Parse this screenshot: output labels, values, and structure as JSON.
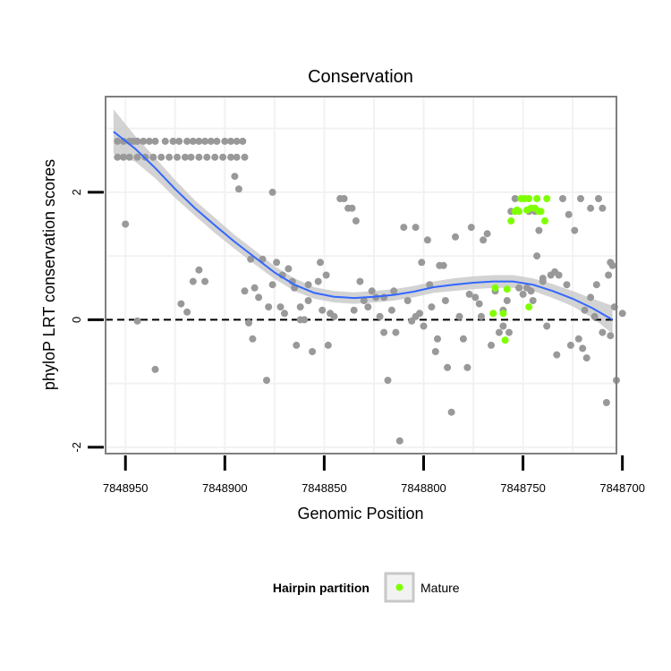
{
  "chart_data": {
    "type": "scatter",
    "title": "Conservation",
    "xlabel": "Genomic Position",
    "ylabel": "phyloP LRT conservation scores",
    "xlim": [
      7848703,
      7848960
    ],
    "ylim": [
      -2.1,
      3.5
    ],
    "x_reversed": true,
    "x_ticks": [
      7848950,
      7848900,
      7848850,
      7848800,
      7848750,
      7848700
    ],
    "x_tick_labels": [
      "7848950",
      "7848900",
      "7848850",
      "7848800",
      "7848750",
      "7848700"
    ],
    "y_ticks": [
      -2,
      0,
      2
    ],
    "y_tick_labels": [
      "-2",
      "0",
      "2"
    ],
    "reference_line": {
      "y": 0,
      "style": "dashed"
    },
    "legend": {
      "title": "Hairpin partition",
      "position": "bottom",
      "entries": [
        "Mature"
      ]
    },
    "colors": {
      "other": "#999999",
      "mature": "#7fff00",
      "smooth": "#3366ff",
      "band": "#c8c8c8",
      "panel_border": "#7f7f7f",
      "grid": "#f2f2f2"
    },
    "series": [
      {
        "name": "Other",
        "points": [
          [
            7848954,
            2.8
          ],
          [
            7848951,
            2.8
          ],
          [
            7848948,
            2.8
          ],
          [
            7848946,
            2.8
          ],
          [
            7848944,
            2.8
          ],
          [
            7848941,
            2.8
          ],
          [
            7848938,
            2.8
          ],
          [
            7848935,
            2.8
          ],
          [
            7848930,
            2.8
          ],
          [
            7848926,
            2.8
          ],
          [
            7848923,
            2.8
          ],
          [
            7848919,
            2.8
          ],
          [
            7848916,
            2.8
          ],
          [
            7848913,
            2.8
          ],
          [
            7848910,
            2.8
          ],
          [
            7848907,
            2.8
          ],
          [
            7848904,
            2.8
          ],
          [
            7848900,
            2.8
          ],
          [
            7848897,
            2.8
          ],
          [
            7848894,
            2.8
          ],
          [
            7848891,
            2.8
          ],
          [
            7848954,
            2.55
          ],
          [
            7848951,
            2.55
          ],
          [
            7848948,
            2.55
          ],
          [
            7848944,
            2.55
          ],
          [
            7848940,
            2.55
          ],
          [
            7848936,
            2.55
          ],
          [
            7848932,
            2.55
          ],
          [
            7848928,
            2.55
          ],
          [
            7848924,
            2.55
          ],
          [
            7848920,
            2.55
          ],
          [
            7848917,
            2.55
          ],
          [
            7848913,
            2.55
          ],
          [
            7848909,
            2.55
          ],
          [
            7848905,
            2.55
          ],
          [
            7848901,
            2.55
          ],
          [
            7848897,
            2.55
          ],
          [
            7848894,
            2.55
          ],
          [
            7848890,
            2.55
          ],
          [
            7848950,
            1.5
          ],
          [
            7848944,
            -0.02
          ],
          [
            7848935,
            -0.78
          ],
          [
            7848922,
            0.25
          ],
          [
            7848919,
            0.12
          ],
          [
            7848916,
            0.6
          ],
          [
            7848913,
            0.78
          ],
          [
            7848910,
            0.6
          ],
          [
            7848895,
            2.25
          ],
          [
            7848893,
            2.05
          ],
          [
            7848890,
            0.45
          ],
          [
            7848888,
            -0.05
          ],
          [
            7848886,
            -0.3
          ],
          [
            7848883,
            0.35
          ],
          [
            7848881,
            0.95
          ],
          [
            7848879,
            -0.95
          ],
          [
            7848876,
            2.0
          ],
          [
            7848876,
            0.55
          ],
          [
            7848874,
            0.9
          ],
          [
            7848872,
            0.2
          ],
          [
            7848870,
            0.1
          ],
          [
            7848868,
            0.8
          ],
          [
            7848866,
            0.6
          ],
          [
            7848864,
            -0.4
          ],
          [
            7848862,
            0.2
          ],
          [
            7848860,
            0.0
          ],
          [
            7848858,
            0.55
          ],
          [
            7848856,
            -0.5
          ],
          [
            7848853,
            0.6
          ],
          [
            7848851,
            0.15
          ],
          [
            7848849,
            0.7
          ],
          [
            7848847,
            0.1
          ],
          [
            7848845,
            0.05
          ],
          [
            7848842,
            1.9
          ],
          [
            7848840,
            1.9
          ],
          [
            7848838,
            1.75
          ],
          [
            7848836,
            1.75
          ],
          [
            7848834,
            1.55
          ],
          [
            7848832,
            0.6
          ],
          [
            7848830,
            0.3
          ],
          [
            7848828,
            0.2
          ],
          [
            7848826,
            0.45
          ],
          [
            7848824,
            0.35
          ],
          [
            7848822,
            0.05
          ],
          [
            7848820,
            -0.2
          ],
          [
            7848818,
            -0.95
          ],
          [
            7848816,
            0.15
          ],
          [
            7848814,
            -0.2
          ],
          [
            7848812,
            -1.9
          ],
          [
            7848810,
            1.45
          ],
          [
            7848808,
            0.3
          ],
          [
            7848806,
            -0.02
          ],
          [
            7848804,
            1.45
          ],
          [
            7848802,
            0.1
          ],
          [
            7848800,
            -0.1
          ],
          [
            7848798,
            1.25
          ],
          [
            7848796,
            0.2
          ],
          [
            7848794,
            -0.5
          ],
          [
            7848792,
            0.85
          ],
          [
            7848790,
            0.85
          ],
          [
            7848788,
            -0.75
          ],
          [
            7848786,
            -1.45
          ],
          [
            7848784,
            1.3
          ],
          [
            7848782,
            0.05
          ],
          [
            7848780,
            -0.3
          ],
          [
            7848778,
            -0.75
          ],
          [
            7848776,
            1.45
          ],
          [
            7848774,
            0.35
          ],
          [
            7848772,
            0.25
          ],
          [
            7848770,
            1.25
          ],
          [
            7848768,
            1.35
          ],
          [
            7848766,
            -0.4
          ],
          [
            7848764,
            0.45
          ],
          [
            7848762,
            -0.2
          ],
          [
            7848760,
            0.15
          ],
          [
            7848758,
            0.3
          ],
          [
            7848756,
            1.7
          ],
          [
            7848754,
            1.9
          ],
          [
            7848752,
            0.5
          ],
          [
            7848750,
            0.4
          ],
          [
            7848748,
            0.5
          ],
          [
            7848746,
            0.45
          ],
          [
            7848744,
            1.7
          ],
          [
            7848742,
            1.4
          ],
          [
            7848740,
            0.65
          ],
          [
            7848738,
            -0.1
          ],
          [
            7848736,
            0.7
          ],
          [
            7848734,
            0.75
          ],
          [
            7848732,
            0.7
          ],
          [
            7848730,
            1.9
          ],
          [
            7848728,
            0.55
          ],
          [
            7848726,
            -0.4
          ],
          [
            7848724,
            1.4
          ],
          [
            7848722,
            -0.3
          ],
          [
            7848720,
            -0.45
          ],
          [
            7848718,
            -0.6
          ],
          [
            7848716,
            0.35
          ],
          [
            7848714,
            0.05
          ],
          [
            7848712,
            1.9
          ],
          [
            7848710,
            1.75
          ],
          [
            7848708,
            -1.3
          ],
          [
            7848706,
            -0.25
          ],
          [
            7848704,
            0.2
          ],
          [
            7848745,
            0.3
          ],
          [
            7848740,
            0.6
          ],
          [
            7848727,
            1.65
          ],
          [
            7848721,
            1.9
          ],
          [
            7848716,
            1.75
          ],
          [
            7848700,
            0.1
          ],
          [
            7848710,
            -0.2
          ],
          [
            7848703,
            -0.95
          ],
          [
            7848705,
            0.85
          ],
          [
            7848707,
            0.7
          ],
          [
            7848713,
            0.55
          ],
          [
            7848719,
            0.15
          ],
          [
            7848733,
            -0.55
          ],
          [
            7848760,
            -0.1
          ],
          [
            7848771,
            0.05
          ],
          [
            7848777,
            0.4
          ],
          [
            7848793,
            -0.3
          ],
          [
            7848801,
            0.9
          ],
          [
            7848815,
            0.45
          ],
          [
            7848820,
            0.35
          ],
          [
            7848835,
            0.15
          ],
          [
            7848848,
            -0.4
          ],
          [
            7848852,
            0.9
          ],
          [
            7848858,
            0.3
          ],
          [
            7848862,
            0.0
          ],
          [
            7848871,
            0.7
          ],
          [
            7848878,
            0.2
          ],
          [
            7848885,
            0.5
          ],
          [
            7848887,
            0.95
          ],
          [
            7848865,
            0.5
          ],
          [
            7848804,
            0.05
          ],
          [
            7848797,
            0.55
          ],
          [
            7848789,
            0.3
          ],
          [
            7848757,
            -0.2
          ],
          [
            7848747,
            1.7
          ],
          [
            7848743,
            1.0
          ],
          [
            7848706,
            0.9
          ]
        ]
      },
      {
        "name": "Mature",
        "points": [
          [
            7848756,
            1.55
          ],
          [
            7848754,
            1.7
          ],
          [
            7848752,
            1.7
          ],
          [
            7848751,
            1.9
          ],
          [
            7848749,
            1.9
          ],
          [
            7848747,
            1.9
          ],
          [
            7848746,
            1.75
          ],
          [
            7848744,
            1.75
          ],
          [
            7848742,
            1.7
          ],
          [
            7848741,
            1.7
          ],
          [
            7848739,
            1.55
          ],
          [
            7848738,
            1.9
          ],
          [
            7848743,
            1.9
          ],
          [
            7848748,
            1.72
          ],
          [
            7848753,
            1.72
          ],
          [
            7848760,
            0.1
          ],
          [
            7848758,
            0.48
          ],
          [
            7848764,
            0.5
          ],
          [
            7848765,
            0.1
          ],
          [
            7848747,
            0.2
          ],
          [
            7848759,
            -0.32
          ]
        ]
      }
    ],
    "smooth": {
      "method": "loess",
      "x": [
        7848956,
        7848945,
        7848935,
        7848925,
        7848915,
        7848905,
        7848895,
        7848885,
        7848875,
        7848865,
        7848855,
        7848845,
        7848835,
        7848825,
        7848815,
        7848805,
        7848795,
        7848785,
        7848775,
        7848765,
        7848755,
        7848745,
        7848735,
        7848725,
        7848715,
        7848705
      ],
      "y": [
        2.95,
        2.68,
        2.38,
        2.05,
        1.75,
        1.48,
        1.22,
        0.98,
        0.74,
        0.55,
        0.42,
        0.36,
        0.34,
        0.36,
        0.39,
        0.44,
        0.51,
        0.55,
        0.58,
        0.6,
        0.6,
        0.55,
        0.45,
        0.33,
        0.18,
        0.0
      ],
      "band_half_width": [
        0.35,
        0.2,
        0.16,
        0.14,
        0.12,
        0.12,
        0.11,
        0.11,
        0.1,
        0.1,
        0.09,
        0.09,
        0.09,
        0.09,
        0.09,
        0.09,
        0.09,
        0.1,
        0.1,
        0.1,
        0.1,
        0.1,
        0.11,
        0.12,
        0.15,
        0.22
      ]
    }
  }
}
